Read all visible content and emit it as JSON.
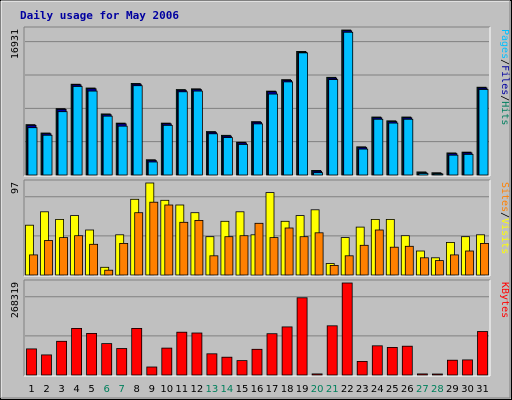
{
  "chart_data": {
    "type": "bar",
    "title": "Daily usage for May 2006",
    "categories": [
      "1",
      "2",
      "3",
      "4",
      "5",
      "6",
      "7",
      "8",
      "9",
      "10",
      "11",
      "12",
      "13",
      "14",
      "15",
      "16",
      "17",
      "18",
      "19",
      "20",
      "21",
      "22",
      "23",
      "24",
      "25",
      "26",
      "27",
      "28",
      "29",
      "30",
      "31"
    ],
    "weekend_days": [
      "6",
      "7",
      "13",
      "14",
      "20",
      "21",
      "27",
      "28"
    ],
    "panels": [
      {
        "id": "top",
        "max_label": "16931",
        "legend": [
          "Pages",
          "/",
          "Files",
          "/",
          "Hits"
        ],
        "legend_colors": [
          "#00c0ff",
          "#000000",
          "#0000a0",
          "#000000",
          "#007f5f"
        ],
        "series": [
          {
            "name": "Hits",
            "color": "#00805c",
            "values": [
              6600,
              5500,
              8700,
              11900,
              11400,
              8000,
              6800,
              12000,
              2000,
              6800,
              11200,
              11300,
              5700,
              5200,
              4300,
              7000,
              11000,
              12500,
              16200,
              600,
              12800,
              19000,
              3700,
              7600,
              7100,
              7600,
              400,
              300,
              2900,
              3000,
              11500
            ]
          },
          {
            "name": "Files",
            "color": "#0000a0",
            "values": [
              6500,
              5400,
              8600,
              11800,
              11300,
              7900,
              6700,
              11900,
              1900,
              6700,
              11100,
              11200,
              5600,
              5100,
              4200,
              6900,
              10900,
              12400,
              16100,
              500,
              12700,
              18900,
              3600,
              7500,
              7000,
              7500,
              300,
              200,
              2800,
              2900,
              11400
            ]
          },
          {
            "name": "Pages",
            "color": "#00c0ff",
            "values": [
              6200,
              5200,
              8300,
              11600,
              11000,
              7700,
              6400,
              11700,
              1700,
              6500,
              10900,
              11000,
              5400,
              4900,
              4000,
              6700,
              10600,
              12200,
              16000,
              300,
              12500,
              18700,
              3400,
              7300,
              6800,
              7300,
              200,
              100,
              2600,
              2700,
              11200
            ]
          }
        ]
      },
      {
        "id": "middle",
        "max_label": "97",
        "legend": [
          "Sites",
          "/",
          "Visits"
        ],
        "legend_colors": [
          "#ff8000",
          "#000000",
          "#ffff00"
        ],
        "series": [
          {
            "name": "Visits",
            "color": "#ffff00",
            "values": [
              52,
              66,
              58,
              62,
              47,
              8,
              42,
              79,
              96,
              78,
              73,
              65,
              40,
              56,
              66,
              42,
              86,
              56,
              62,
              68,
              12,
              39,
              50,
              58,
              58,
              41,
              25,
              18,
              34,
              40,
              42
            ]
          },
          {
            "name": "Sites",
            "color": "#ff8000",
            "values": [
              21,
              36,
              39,
              41,
              32,
              5,
              33,
              65,
              76,
              73,
              55,
              57,
              20,
              40,
              41,
              54,
              39,
              49,
              40,
              44,
              10,
              20,
              31,
              47,
              29,
              30,
              18,
              15,
              21,
              25,
              33
            ]
          }
        ]
      },
      {
        "id": "bottom",
        "max_label": "268319",
        "legend": [
          "KBytes"
        ],
        "legend_colors": [
          "#ff0000"
        ],
        "series": [
          {
            "name": "KBytes",
            "color": "#ff0000",
            "values": [
              69000,
              53000,
              89000,
              123000,
              110000,
              83000,
              70000,
              123000,
              21000,
              71000,
              113000,
              111000,
              56000,
              47000,
              38000,
              68000,
              109000,
              127000,
              204000,
              3000,
              130000,
              243000,
              36000,
              77000,
              73000,
              76000,
              3000,
              2000,
              39000,
              40000,
              115000
            ]
          }
        ]
      }
    ]
  }
}
